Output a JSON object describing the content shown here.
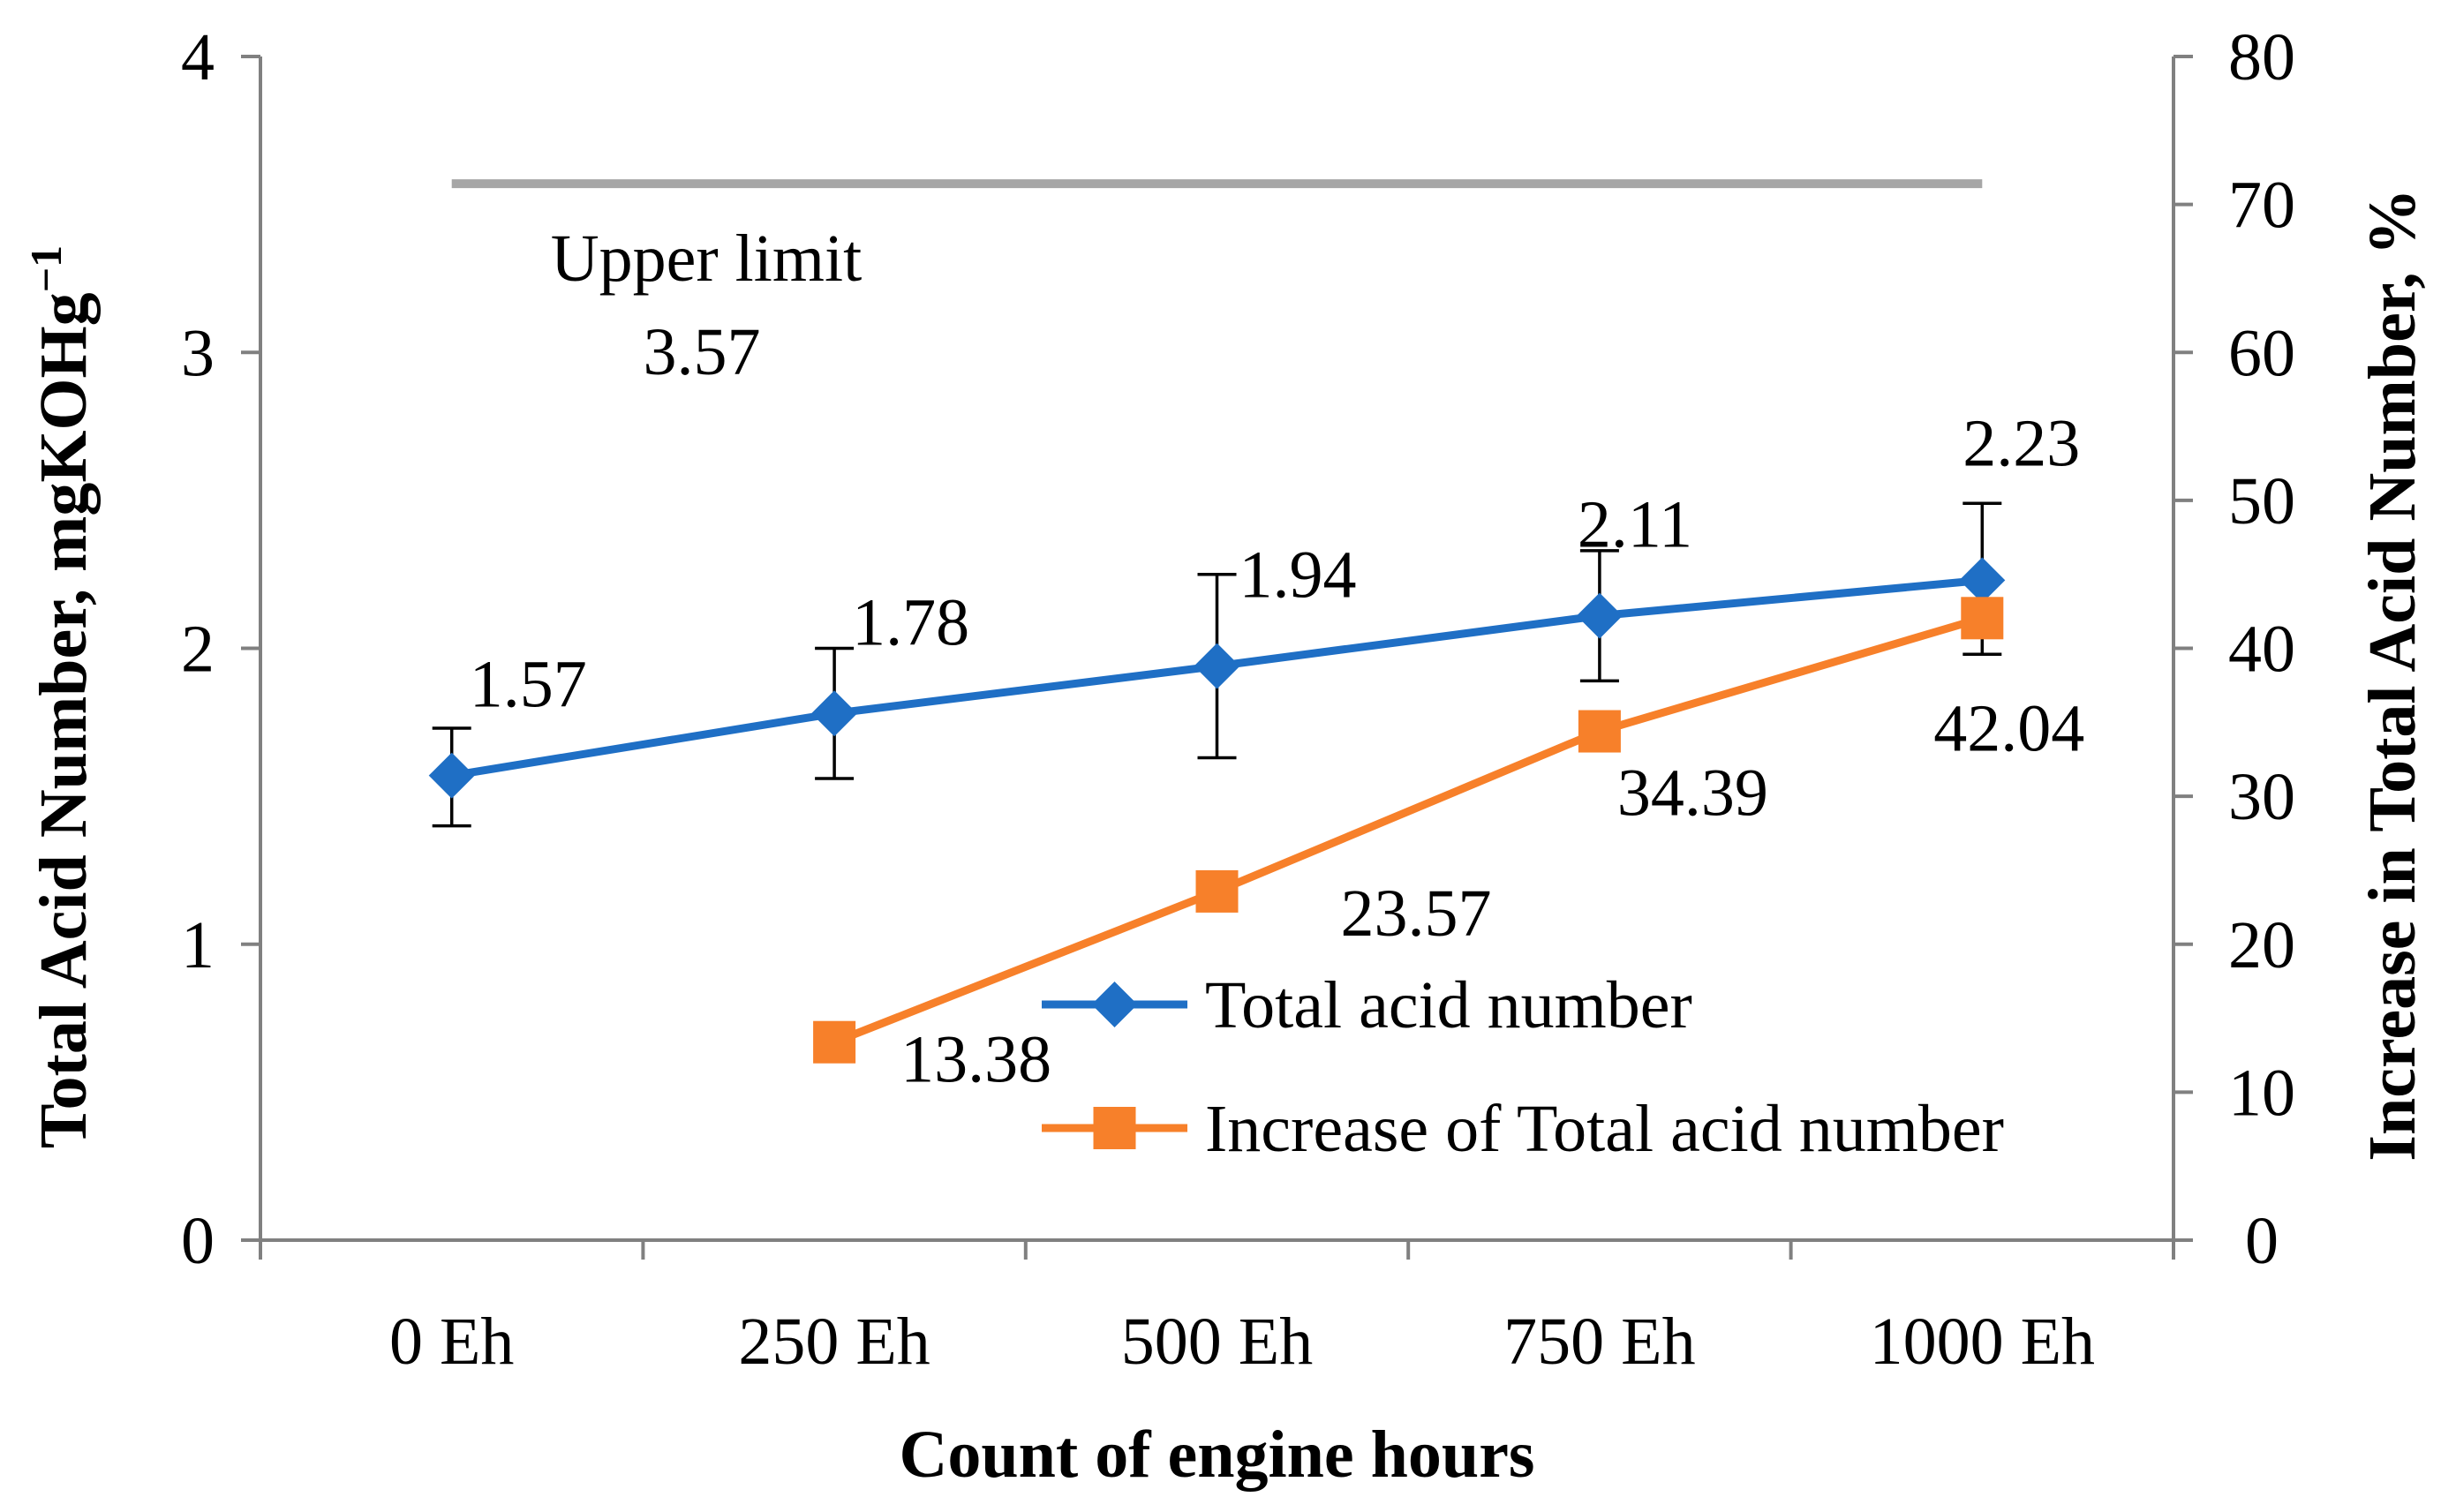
{
  "chart_data": {
    "type": "line",
    "categories": [
      "0 Eh",
      "250 Eh",
      "500 Eh",
      "750 Eh",
      "1000 Eh"
    ],
    "xlabel": "Count of engine hours",
    "ylabel": "Total Acid Number, mgKOHg",
    "ylabel_superscript": "−1",
    "ylabel_right": "Increase in Total Acid Number, %",
    "ylim": [
      0,
      4
    ],
    "yticks": [
      "0",
      "1",
      "2",
      "3",
      "4"
    ],
    "ylim_right": [
      0,
      80
    ],
    "yticks_right": [
      "0",
      "10",
      "20",
      "30",
      "40",
      "50",
      "60",
      "70",
      "80"
    ],
    "series": [
      {
        "name": "Total acid number",
        "axis": "left",
        "marker": "diamond",
        "color": "#1F6FC5",
        "values": [
          1.57,
          1.78,
          1.94,
          2.11,
          2.23
        ],
        "labels": [
          "1.57",
          "1.78",
          "1.94",
          "2.11",
          "2.23"
        ],
        "error_high": [
          1.73,
          2.0,
          2.25,
          2.33,
          2.49
        ],
        "error_low": [
          1.4,
          1.56,
          1.63,
          1.89,
          1.98
        ]
      },
      {
        "name": "Increase of Total acid number",
        "axis": "right",
        "marker": "square",
        "color": "#F7802A",
        "values": [
          null,
          13.38,
          23.57,
          34.39,
          42.04
        ],
        "labels": [
          "",
          "13.38",
          "23.57",
          "34.39",
          "42.04"
        ]
      }
    ],
    "reference_line": {
      "value": 3.57,
      "color": "#A6A6A6",
      "label_line1": "Upper limit",
      "label_line2": "3.57"
    },
    "grid": false,
    "legend": "lower-right"
  }
}
